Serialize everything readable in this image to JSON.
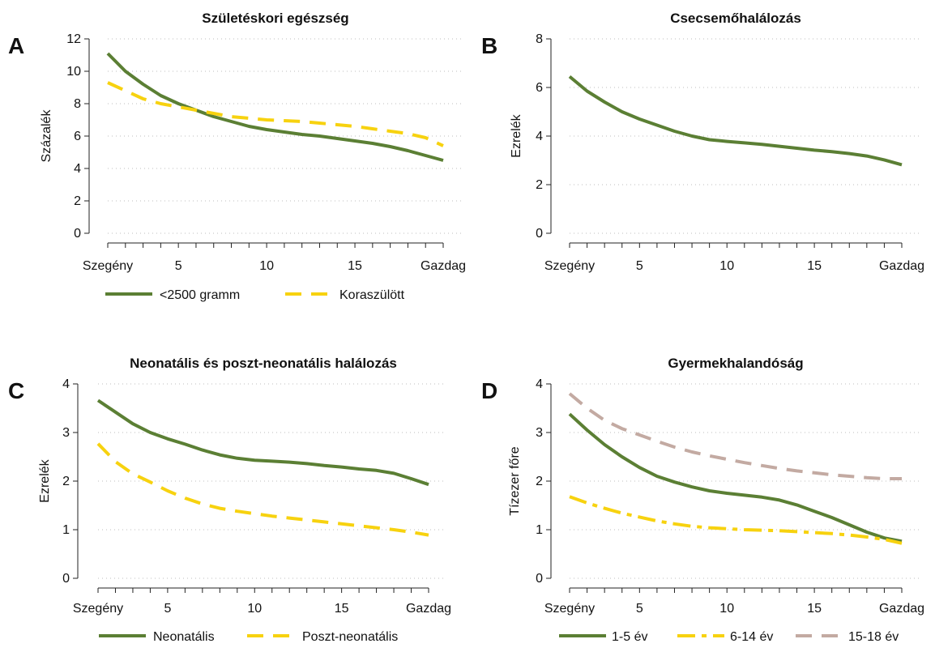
{
  "chart_data": [
    {
      "id": "A",
      "letter": "A",
      "type": "line",
      "title": "Születéskori egészség",
      "xlabel": "",
      "ylabel": "Százalék",
      "xlim": [
        1,
        20
      ],
      "ylim": [
        0,
        12
      ],
      "grid": true,
      "x_ticks": [
        {
          "value": 1,
          "label": "Szegény"
        },
        {
          "value": 5,
          "label": "5"
        },
        {
          "value": 10,
          "label": "10"
        },
        {
          "value": 15,
          "label": "15"
        },
        {
          "value": 20,
          "label": "Gazdag"
        }
      ],
      "y_ticks": [
        0,
        2,
        4,
        6,
        8,
        10,
        12
      ],
      "legend_position": "bottom",
      "series": [
        {
          "name": "<2500 gramm",
          "color": "#5b7f34",
          "style": "solid",
          "x": [
            1,
            2,
            3,
            4,
            5,
            6,
            7,
            8,
            9,
            10,
            11,
            12,
            13,
            14,
            15,
            16,
            17,
            18,
            19,
            20
          ],
          "y": [
            11.1,
            10.0,
            9.2,
            8.5,
            8.0,
            7.6,
            7.2,
            6.9,
            6.6,
            6.4,
            6.25,
            6.1,
            6.0,
            5.85,
            5.7,
            5.55,
            5.35,
            5.1,
            4.8,
            4.5
          ]
        },
        {
          "name": "Koraszülött",
          "color": "#f7d20f",
          "style": "dashed",
          "x": [
            1,
            2,
            3,
            4,
            5,
            6,
            7,
            8,
            9,
            10,
            11,
            12,
            13,
            14,
            15,
            16,
            17,
            18,
            19,
            20
          ],
          "y": [
            9.3,
            8.8,
            8.3,
            8.0,
            7.8,
            7.6,
            7.4,
            7.2,
            7.1,
            7.0,
            6.95,
            6.9,
            6.8,
            6.7,
            6.6,
            6.45,
            6.3,
            6.15,
            5.9,
            5.4
          ]
        }
      ]
    },
    {
      "id": "B",
      "letter": "B",
      "type": "line",
      "title": "Csecsemőhalálozás",
      "xlabel": "",
      "ylabel": "Ezrelék",
      "xlim": [
        1,
        20
      ],
      "ylim": [
        0,
        8
      ],
      "grid": true,
      "x_ticks": [
        {
          "value": 1,
          "label": "Szegény"
        },
        {
          "value": 5,
          "label": "5"
        },
        {
          "value": 10,
          "label": "10"
        },
        {
          "value": 15,
          "label": "15"
        },
        {
          "value": 20,
          "label": "Gazdag"
        }
      ],
      "y_ticks": [
        0,
        2,
        4,
        6,
        8
      ],
      "legend_position": "none",
      "series": [
        {
          "name": "",
          "color": "#5b7f34",
          "style": "solid",
          "x": [
            1,
            2,
            3,
            4,
            5,
            6,
            7,
            8,
            9,
            10,
            11,
            12,
            13,
            14,
            15,
            16,
            17,
            18,
            19,
            20
          ],
          "y": [
            6.45,
            5.85,
            5.4,
            5.0,
            4.7,
            4.45,
            4.2,
            4.0,
            3.85,
            3.78,
            3.72,
            3.66,
            3.58,
            3.5,
            3.42,
            3.36,
            3.28,
            3.18,
            3.02,
            2.82
          ]
        }
      ]
    },
    {
      "id": "C",
      "letter": "C",
      "type": "line",
      "title": "Neonatális és poszt-neonatális halálozás",
      "xlabel": "",
      "ylabel": "Ezrelék",
      "xlim": [
        1,
        20
      ],
      "ylim": [
        0,
        4
      ],
      "grid": true,
      "x_ticks": [
        {
          "value": 1,
          "label": "Szegény"
        },
        {
          "value": 5,
          "label": "5"
        },
        {
          "value": 10,
          "label": "10"
        },
        {
          "value": 15,
          "label": "15"
        },
        {
          "value": 20,
          "label": "Gazdag"
        }
      ],
      "y_ticks": [
        0,
        1,
        2,
        3,
        4
      ],
      "legend_position": "bottom",
      "series": [
        {
          "name": "Neonatális",
          "color": "#5b7f34",
          "style": "solid",
          "x": [
            1,
            2,
            3,
            4,
            5,
            6,
            7,
            8,
            9,
            10,
            11,
            12,
            13,
            14,
            15,
            16,
            17,
            18,
            19,
            20
          ],
          "y": [
            3.66,
            3.42,
            3.18,
            3.0,
            2.87,
            2.76,
            2.64,
            2.54,
            2.47,
            2.43,
            2.41,
            2.39,
            2.36,
            2.32,
            2.29,
            2.25,
            2.22,
            2.16,
            2.05,
            1.93
          ]
        },
        {
          "name": "Poszt-neonatális",
          "color": "#f7d20f",
          "style": "dashed",
          "x": [
            1,
            2,
            3,
            4,
            5,
            6,
            7,
            8,
            9,
            10,
            11,
            12,
            13,
            14,
            15,
            16,
            17,
            18,
            19,
            20
          ],
          "y": [
            2.77,
            2.4,
            2.15,
            1.98,
            1.8,
            1.65,
            1.53,
            1.44,
            1.38,
            1.33,
            1.28,
            1.24,
            1.2,
            1.16,
            1.12,
            1.08,
            1.04,
            1.0,
            0.95,
            0.89
          ]
        }
      ]
    },
    {
      "id": "D",
      "letter": "D",
      "type": "line",
      "title": "Gyermekhalandóság",
      "xlabel": "",
      "ylabel": "Tízezer főre",
      "xlim": [
        1,
        20
      ],
      "ylim": [
        0,
        4
      ],
      "grid": true,
      "x_ticks": [
        {
          "value": 1,
          "label": "Szegény"
        },
        {
          "value": 5,
          "label": "5"
        },
        {
          "value": 10,
          "label": "10"
        },
        {
          "value": 15,
          "label": "15"
        },
        {
          "value": 20,
          "label": "Gazdag"
        }
      ],
      "y_ticks": [
        0,
        1,
        2,
        3,
        4
      ],
      "legend_position": "bottom",
      "series": [
        {
          "name": "1-5 év",
          "color": "#5b7f34",
          "style": "solid",
          "x": [
            1,
            2,
            3,
            4,
            5,
            6,
            7,
            8,
            9,
            10,
            11,
            12,
            13,
            14,
            15,
            16,
            17,
            18,
            19,
            20
          ],
          "y": [
            3.38,
            3.05,
            2.75,
            2.5,
            2.28,
            2.1,
            1.98,
            1.88,
            1.8,
            1.75,
            1.71,
            1.67,
            1.61,
            1.51,
            1.38,
            1.25,
            1.1,
            0.95,
            0.83,
            0.76
          ]
        },
        {
          "name": "6-14 év",
          "color": "#f7d20f",
          "style": "dashdot",
          "x": [
            1,
            2,
            3,
            4,
            5,
            6,
            7,
            8,
            9,
            10,
            11,
            12,
            13,
            14,
            15,
            16,
            17,
            18,
            19,
            20
          ],
          "y": [
            1.68,
            1.55,
            1.44,
            1.34,
            1.26,
            1.18,
            1.12,
            1.07,
            1.04,
            1.02,
            1.0,
            0.99,
            0.98,
            0.96,
            0.94,
            0.92,
            0.89,
            0.85,
            0.8,
            0.72
          ]
        },
        {
          "name": "15-18 év",
          "color": "#c3aaa2",
          "style": "dashed",
          "x": [
            1,
            2,
            3,
            4,
            5,
            6,
            7,
            8,
            9,
            10,
            11,
            12,
            13,
            14,
            15,
            16,
            17,
            18,
            19,
            20
          ],
          "y": [
            3.8,
            3.5,
            3.25,
            3.08,
            2.95,
            2.82,
            2.7,
            2.6,
            2.52,
            2.45,
            2.38,
            2.32,
            2.26,
            2.21,
            2.17,
            2.13,
            2.1,
            2.07,
            2.05,
            2.05
          ]
        }
      ]
    }
  ]
}
